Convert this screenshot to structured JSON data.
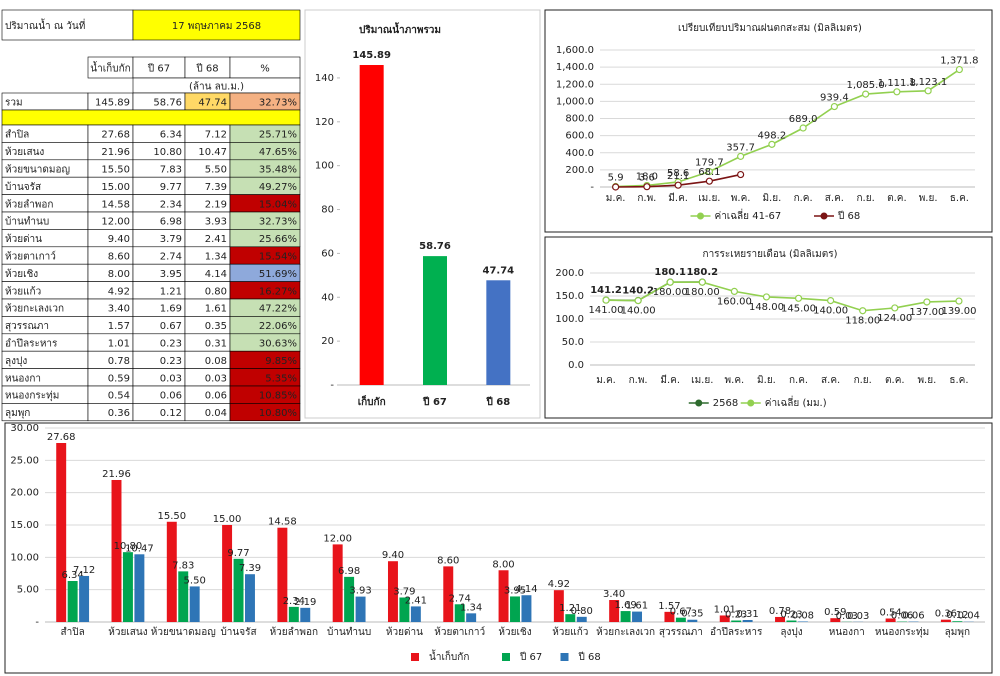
{
  "table": {
    "header_label": "ปริมาณน้ำ ณ วันที่",
    "date": "17 พฤษภาคม 2568",
    "columns": [
      "น้ำเก็บกัก",
      "ปี 67",
      "ปี 68",
      "%"
    ],
    "unit": "(ล้าน ลบ.ม.)",
    "total": [
      "รวม",
      "145.89",
      "58.76",
      "47.74",
      "32.73%"
    ],
    "rows": [
      [
        "สำปิล",
        "27.68",
        "6.34",
        "7.12",
        "25.71%"
      ],
      [
        "ห้วยเสนง",
        "21.96",
        "10.80",
        "10.47",
        "47.65%"
      ],
      [
        "ห้วยขนาดมอญ",
        "15.50",
        "7.83",
        "5.50",
        "35.48%"
      ],
      [
        "บ้านจรัส",
        "15.00",
        "9.77",
        "7.39",
        "49.27%"
      ],
      [
        "ห้วยลำพอก",
        "14.58",
        "2.34",
        "2.19",
        "15.04%"
      ],
      [
        "บ้านทำนบ",
        "12.00",
        "6.98",
        "3.93",
        "32.73%"
      ],
      [
        "ห้วยด่าน",
        "9.40",
        "3.79",
        "2.41",
        "25.66%"
      ],
      [
        "ห้วยตาเกาว์",
        "8.60",
        "2.74",
        "1.34",
        "15.54%"
      ],
      [
        "ห้วยเชิง",
        "8.00",
        "3.95",
        "4.14",
        "51.69%"
      ],
      [
        "ห้วยแก้ว",
        "4.92",
        "1.21",
        "0.80",
        "16.27%"
      ],
      [
        "ห้วยกะเลงเวก",
        "3.40",
        "1.69",
        "1.61",
        "47.22%"
      ],
      [
        "สุวรรณภา",
        "1.57",
        "0.67",
        "0.35",
        "22.06%"
      ],
      [
        "อำปึลระหาร",
        "1.01",
        "0.23",
        "0.31",
        "30.63%"
      ],
      [
        "ลุงปุง",
        "0.78",
        "0.23",
        "0.08",
        "9.85%"
      ],
      [
        "หนองกา",
        "0.59",
        "0.03",
        "0.03",
        "5.35%"
      ],
      [
        "หนองกระทุ่ม",
        "0.54",
        "0.06",
        "0.06",
        "10.85%"
      ],
      [
        "ลุมพุก",
        "0.36",
        "0.12",
        "0.04",
        "10.80%"
      ]
    ],
    "pct_colors": [
      "#c6e0b4",
      "#c6e0b4",
      "#c6e0b4",
      "#c6e0b4",
      "#c00000",
      "#c6e0b4",
      "#c6e0b4",
      "#c00000",
      "#8ea9db",
      "#c00000",
      "#c6e0b4",
      "#c6e0b4",
      "#c6e0b4",
      "#c00000",
      "#c00000",
      "#c00000",
      "#c00000"
    ]
  },
  "chart_data": [
    {
      "type": "bar",
      "title": "ปริมาณน้ำภาพรวม",
      "categories": [
        "เก็บกัก",
        "ปี 67",
        "ปี 68"
      ],
      "values": [
        145.89,
        58.76,
        47.74
      ],
      "colors": [
        "#ff0000",
        "#00b050",
        "#4472c4"
      ],
      "ylim": [
        0,
        150
      ],
      "yticks": [
        {
          "value": 0,
          "label": "-"
        },
        20,
        40,
        60,
        80,
        100,
        120,
        140
      ],
      "grid": false
    },
    {
      "type": "line",
      "title": "เปรียบเทียบปริมาณฝนตกสะสม (มิลลิเมตร)",
      "categories": [
        "ม.ค.",
        "ก.พ.",
        "มี.ค.",
        "เม.ย.",
        "พ.ค.",
        "มิ.ย.",
        "ก.ค.",
        "ส.ค.",
        "ก.ย.",
        "ต.ค.",
        "พ.ย.",
        "ธ.ค."
      ],
      "series": [
        {
          "name": "ค่าเฉลี่ย 41-67",
          "color": "#92d050",
          "values": [
            5.9,
            18.0,
            58.6,
            179.7,
            357.7,
            498.2,
            689.0,
            939.4,
            1085.0,
            1111.8,
            1123.1,
            1371.8
          ],
          "value_labels": [
            "5.9",
            "18.0",
            "58.6",
            "179.7",
            "357.7",
            "498.2",
            "689.0",
            "939.4",
            "1,085.0",
            "1,111.8",
            "1,123.1",
            "1,371.8"
          ]
        },
        {
          "name": "ปี 68",
          "color": "#7b1414",
          "values": [
            0,
            3.6,
            21.1,
            68.1,
            145,
            null,
            null,
            null,
            null,
            null,
            null,
            null
          ],
          "value_labels": [
            null,
            "3.6",
            "21.1",
            "68.1",
            null,
            null,
            null,
            null,
            null,
            null,
            null,
            null
          ]
        }
      ],
      "ylim": [
        0,
        1600
      ],
      "yticks": [
        {
          "value": 0,
          "label": "-"
        },
        {
          "value": 200,
          "label": "200.0"
        },
        {
          "value": 400,
          "label": "400.0"
        },
        {
          "value": 600,
          "label": "600.0"
        },
        {
          "value": 800,
          "label": "800.0"
        },
        {
          "value": 1000,
          "label": "1,000.0"
        },
        {
          "value": 1200,
          "label": "1,200.0"
        },
        {
          "value": 1400,
          "label": "1,400.0"
        },
        {
          "value": 1600,
          "label": "1,600.0"
        }
      ],
      "grid": true,
      "legend": "bottom"
    },
    {
      "type": "line",
      "title": "การระเหยรายเดือน (มิลลิเมตร)",
      "categories": [
        "ม.ค.",
        "ก.พ.",
        "มี.ค.",
        "เม.ย.",
        "พ.ค.",
        "มิ.ย.",
        "ก.ค.",
        "ส.ค.",
        "ก.ย.",
        "ต.ค.",
        "พ.ย.",
        "ธ.ค."
      ],
      "series": [
        {
          "name": "2568",
          "color": "#2e6b2e",
          "values": [
            141.2,
            140.2,
            180.1,
            180.2,
            null,
            null,
            null,
            null,
            null,
            null,
            null,
            null
          ]
        },
        {
          "name": "ค่าเฉลี่ย (มม.)",
          "color": "#92d050",
          "values": [
            141,
            140,
            180,
            180,
            160,
            148,
            145,
            140,
            118,
            124,
            137,
            139
          ],
          "value_labels": [
            "141.00",
            "140.00",
            "180.00",
            "180.00",
            "160.00",
            "148.00",
            "145.00",
            "140.00",
            "118.00",
            "124.00",
            "137.00",
            "139.00"
          ]
        }
      ],
      "ylim": [
        0,
        200
      ],
      "yticks": [
        {
          "value": 0,
          "label": "0.0"
        },
        {
          "value": 50,
          "label": "50.0"
        },
        {
          "value": 100,
          "label": "100.0"
        },
        {
          "value": 150,
          "label": "150.0"
        },
        {
          "value": 200,
          "label": "200.0"
        }
      ],
      "grid": true,
      "legend": "bottom"
    },
    {
      "type": "bar",
      "categories": [
        "สำปิล",
        "ห้วยเสนง",
        "ห้วยขนาดมอญ",
        "บ้านจรัส",
        "ห้วยลำพอก",
        "บ้านทำนบ",
        "ห้วยด่าน",
        "ห้วยตาเกาว์",
        "ห้วยเชิง",
        "ห้วยแก้ว",
        "ห้วยกะเลงเวก",
        "สุวรรณภา",
        "อำปึลระหาร",
        "ลุงปุง",
        "หนองกา",
        "หนองกระทุ่ม",
        "ลุมพุก"
      ],
      "series": [
        {
          "name": "น้ำเก็บกัก",
          "color": "#e8141b",
          "values": [
            27.68,
            21.96,
            15.5,
            15,
            14.58,
            12,
            9.4,
            8.6,
            8,
            4.92,
            3.4,
            1.57,
            1.01,
            0.78,
            0.59,
            0.54,
            0.36
          ],
          "value_labels": [
            "27.68",
            "21.96",
            "15.50",
            "15.00",
            "14.58",
            "12.00",
            "9.40",
            "8.60",
            "8.00",
            "4.92",
            "3.40",
            "1.57",
            "1.01",
            "0.78",
            "0.59",
            "0.54",
            "0.36"
          ]
        },
        {
          "name": "ปี 67",
          "color": "#00a550",
          "values": [
            6.34,
            10.8,
            7.83,
            9.77,
            2.34,
            6.98,
            3.79,
            2.74,
            3.95,
            1.21,
            1.69,
            0.67,
            0.23,
            0.23,
            0.03,
            0.06,
            0.12
          ],
          "value_labels": [
            "6.34",
            "10.80",
            "7.83",
            "9.77",
            "2.34",
            "6.98",
            "3.79",
            "2.74",
            "3.95",
            "1.21",
            "1.69",
            "0.67",
            "0.23",
            "0.23",
            "0.03",
            "0.06",
            "0.12"
          ]
        },
        {
          "name": "ปี 68",
          "color": "#2e75b6",
          "values": [
            7.12,
            10.47,
            5.5,
            7.39,
            2.19,
            3.93,
            2.41,
            1.34,
            4.14,
            0.8,
            1.61,
            0.35,
            0.31,
            0.08,
            0.03,
            0.06,
            0.04
          ],
          "value_labels": [
            "7.12",
            "10.47",
            "5.50",
            "7.39",
            "2.19",
            "3.93",
            "2.41",
            "1.34",
            "4.14",
            "0.80",
            "1.61",
            "0.35",
            "0.31",
            "0.08",
            "0.03",
            "0.06",
            "0.04"
          ]
        }
      ],
      "ylim": [
        0,
        30
      ],
      "yticks": [
        {
          "value": 0,
          "label": "-"
        },
        {
          "value": 5,
          "label": "5.00"
        },
        {
          "value": 10,
          "label": "10.00"
        },
        {
          "value": 15,
          "label": "15.00"
        },
        {
          "value": 20,
          "label": "20.00"
        },
        {
          "value": 25,
          "label": "25.00"
        },
        {
          "value": 30,
          "label": "30.00"
        }
      ],
      "grid": true,
      "legend": "bottom"
    }
  ]
}
